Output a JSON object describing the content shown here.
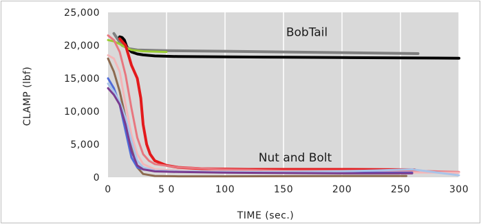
{
  "chart_data": {
    "type": "line",
    "title": "",
    "xlabel": "TIME (sec.)",
    "ylabel": "CLAMP (lbf)",
    "xlim": [
      0,
      300
    ],
    "ylim": [
      0,
      25000
    ],
    "x_ticks": [
      0,
      50,
      100,
      150,
      200,
      250,
      300
    ],
    "x_tick_labels": [
      "0",
      "5 0",
      "100",
      "150",
      "200",
      "250",
      "300"
    ],
    "y_ticks": [
      0,
      5000,
      10000,
      15000,
      20000,
      25000
    ],
    "y_tick_labels": [
      "0",
      "5,000",
      "10,000",
      "15,000",
      "20,000",
      "25,000"
    ],
    "grid": "vertical",
    "plot_background": "#d9d9d9",
    "annotations": [
      {
        "text": "BobTail",
        "x": 170,
        "y": 21400
      },
      {
        "text": "Nut and Bolt",
        "x": 160,
        "y": 2400
      }
    ],
    "series": [
      {
        "color": "#000000",
        "width": 4,
        "x": [
          9,
          10,
          12,
          14,
          16,
          20,
          25,
          30,
          40,
          60,
          100,
          150,
          200,
          250,
          300
        ],
        "y": [
          21000,
          21300,
          21200,
          20800,
          19800,
          19000,
          18700,
          18550,
          18400,
          18300,
          18250,
          18200,
          18150,
          18100,
          18050
        ]
      },
      {
        "color": "#7f7f7f",
        "width": 4,
        "x": [
          5,
          8,
          12,
          18,
          25,
          50,
          100,
          150,
          200,
          265
        ],
        "y": [
          21800,
          21000,
          20000,
          19500,
          19300,
          19200,
          19100,
          19000,
          18900,
          18750
        ]
      },
      {
        "color": "#9acd32",
        "width": 3,
        "x": [
          0,
          5,
          10,
          15,
          20,
          30,
          50
        ],
        "y": [
          20800,
          20600,
          20200,
          19700,
          19300,
          19100,
          19000
        ]
      },
      {
        "color": "#e31a1c",
        "width": 4,
        "x": [
          10,
          15,
          20,
          25,
          28,
          30,
          33,
          36,
          40,
          50,
          60,
          80,
          120,
          200,
          262
        ],
        "y": [
          21000,
          20000,
          17000,
          15000,
          12000,
          8000,
          5000,
          3500,
          2500,
          1800,
          1500,
          1300,
          1200,
          1200,
          1150
        ]
      },
      {
        "color": "#e8777f",
        "width": 3,
        "x": [
          0,
          5,
          10,
          15,
          20,
          25,
          30,
          35,
          40,
          60,
          100,
          150,
          200,
          260,
          280,
          300
        ],
        "y": [
          21500,
          20800,
          19000,
          15500,
          10500,
          6000,
          3500,
          2500,
          2000,
          1500,
          1200,
          1000,
          1000,
          1000,
          900,
          800
        ]
      },
      {
        "color": "#f4b6b8",
        "width": 3,
        "x": [
          0,
          5,
          10,
          15,
          20,
          25,
          30,
          40,
          60,
          100,
          200,
          300
        ],
        "y": [
          18500,
          18000,
          16000,
          11000,
          6500,
          3500,
          2000,
          1200,
          1000,
          900,
          800,
          700
        ]
      },
      {
        "color": "#8c6a4f",
        "width": 3,
        "x": [
          0,
          5,
          10,
          15,
          20,
          25,
          30,
          40,
          60,
          100,
          200,
          255
        ],
        "y": [
          18000,
          16000,
          13000,
          9000,
          5000,
          1500,
          500,
          200,
          150,
          150,
          200,
          200
        ]
      },
      {
        "color": "#4f6bd8",
        "width": 3,
        "x": [
          0,
          5,
          10,
          15,
          20,
          25,
          30,
          40,
          60,
          100,
          200,
          260
        ],
        "y": [
          15000,
          13500,
          11000,
          7000,
          3000,
          1500,
          1200,
          1000,
          900,
          800,
          700,
          700
        ]
      },
      {
        "color": "#a9c4e8",
        "width": 3,
        "x": [
          0,
          5,
          10,
          15,
          20,
          25,
          30,
          40,
          60,
          100,
          150,
          200,
          260,
          300
        ],
        "y": [
          14200,
          13000,
          11500,
          9000,
          5500,
          2500,
          1500,
          1000,
          900,
          800,
          800,
          900,
          1200,
          300
        ]
      },
      {
        "color": "#7a3b8f",
        "width": 3,
        "x": [
          0,
          5,
          10,
          15,
          20,
          25,
          30,
          40,
          60,
          100,
          200,
          260
        ],
        "y": [
          13500,
          12500,
          11000,
          8000,
          4000,
          1800,
          1200,
          900,
          800,
          700,
          600,
          600
        ]
      }
    ]
  }
}
